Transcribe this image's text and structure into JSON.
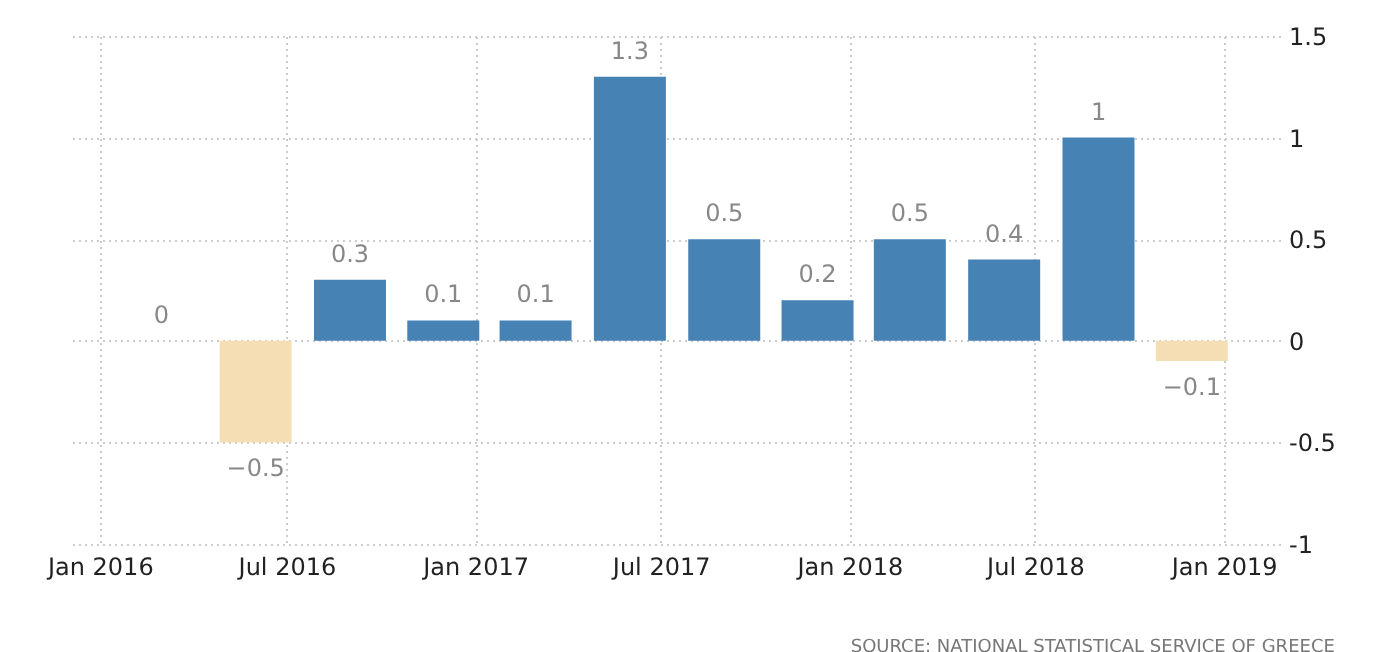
{
  "chart_data": {
    "type": "bar",
    "x": [
      "2016-03-01",
      "2016-06-01",
      "2016-09-01",
      "2016-12-01",
      "2017-03-01",
      "2017-06-01",
      "2017-09-01",
      "2017-12-01",
      "2018-03-01",
      "2018-06-01",
      "2018-09-01",
      "2018-12-01"
    ],
    "values": [
      0,
      -0.5,
      0.3,
      0.1,
      0.1,
      1.3,
      0.5,
      0.2,
      0.5,
      0.4,
      1,
      -0.1
    ],
    "colors": [
      "#4682b4",
      "#f5deb3",
      "#4682b4",
      "#4682b4",
      "#4682b4",
      "#4682b4",
      "#4682b4",
      "#4682b4",
      "#4682b4",
      "#4682b4",
      "#4682b4",
      "#f5deb3"
    ],
    "xlim": [
      "2015-12-01",
      "2019-02-25"
    ],
    "xticks": [
      {
        "value": "2016-01-01",
        "label": "Jan 2016"
      },
      {
        "value": "2016-07-01",
        "label": "Jul 2016"
      },
      {
        "value": "2017-01-01",
        "label": "Jan 2017"
      },
      {
        "value": "2017-07-01",
        "label": "Jul 2017"
      },
      {
        "value": "2018-01-01",
        "label": "Jan 2018"
      },
      {
        "value": "2018-07-01",
        "label": "Jul 2018"
      },
      {
        "value": "2019-01-01",
        "label": "Jan 2019"
      }
    ],
    "ylim": [
      -1,
      1.5
    ],
    "yticks": [
      -1,
      -0.5,
      0,
      0.5,
      1,
      1.5
    ],
    "grid": true,
    "data_labels": true,
    "annotations": [
      "SOURCE: NATIONAL STATISTICAL SERVICE OF GREECE"
    ]
  }
}
